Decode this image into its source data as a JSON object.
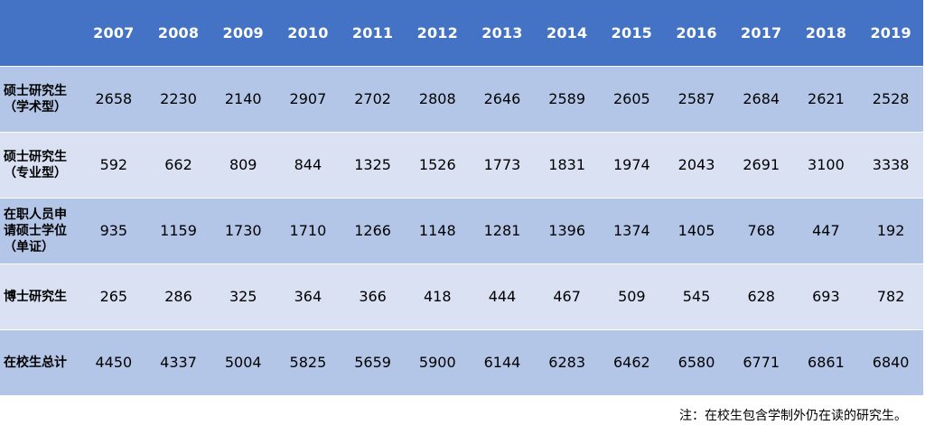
{
  "header": {
    "years": [
      "2007",
      "2008",
      "2009",
      "2010",
      "2011",
      "2012",
      "2013",
      "2014",
      "2015",
      "2016",
      "2017",
      "2018",
      "2019"
    ]
  },
  "rows": [
    {
      "label_lines": [
        "硕士研究生",
        "（学术型）"
      ],
      "values": [
        "2658",
        "2230",
        "2140",
        "2907",
        "2702",
        "2808",
        "2646",
        "2589",
        "2605",
        "2587",
        "2684",
        "2621",
        "2528"
      ]
    },
    {
      "label_lines": [
        "硕士研究生",
        "（专业型）"
      ],
      "values": [
        "592",
        "662",
        "809",
        "844",
        "1325",
        "1526",
        "1773",
        "1831",
        "1974",
        "2043",
        "2691",
        "3100",
        "3338"
      ]
    },
    {
      "label_lines": [
        "在职人员申",
        "请硕士学位",
        "（单证）"
      ],
      "values": [
        "935",
        "1159",
        "1730",
        "1710",
        "1266",
        "1148",
        "1281",
        "1396",
        "1374",
        "1405",
        "768",
        "447",
        "192"
      ]
    },
    {
      "label_lines": [
        "博士研究生"
      ],
      "values": [
        "265",
        "286",
        "325",
        "364",
        "366",
        "418",
        "444",
        "467",
        "509",
        "545",
        "628",
        "693",
        "782"
      ]
    },
    {
      "label_lines": [
        "在校生总计"
      ],
      "values": [
        "4450",
        "4337",
        "5004",
        "5825",
        "5659",
        "5900",
        "6144",
        "6283",
        "6462",
        "6580",
        "6771",
        "6861",
        "6840"
      ]
    }
  ],
  "note": "注：在校生包含学制外仍在读的研究生。",
  "colors": {
    "header_bg": "#4472c4",
    "row_dark": "#b4c6e7",
    "row_light": "#d9e1f2"
  },
  "chart_data": {
    "type": "table",
    "columns": [
      "2007",
      "2008",
      "2009",
      "2010",
      "2011",
      "2012",
      "2013",
      "2014",
      "2015",
      "2016",
      "2017",
      "2018",
      "2019"
    ],
    "rows": [
      {
        "name": "硕士研究生（学术型）",
        "values": [
          2658,
          2230,
          2140,
          2907,
          2702,
          2808,
          2646,
          2589,
          2605,
          2587,
          2684,
          2621,
          2528
        ]
      },
      {
        "name": "硕士研究生（专业型）",
        "values": [
          592,
          662,
          809,
          844,
          1325,
          1526,
          1773,
          1831,
          1974,
          2043,
          2691,
          3100,
          3338
        ]
      },
      {
        "name": "在职人员申请硕士学位（单证）",
        "values": [
          935,
          1159,
          1730,
          1710,
          1266,
          1148,
          1281,
          1396,
          1374,
          1405,
          768,
          447,
          192
        ]
      },
      {
        "name": "博士研究生",
        "values": [
          265,
          286,
          325,
          364,
          366,
          418,
          444,
          467,
          509,
          545,
          628,
          693,
          782
        ]
      },
      {
        "name": "在校生总计",
        "values": [
          4450,
          4337,
          5004,
          5825,
          5659,
          5900,
          6144,
          6283,
          6462,
          6580,
          6771,
          6861,
          6840
        ]
      }
    ],
    "note": "注：在校生包含学制外仍在读的研究生。"
  }
}
